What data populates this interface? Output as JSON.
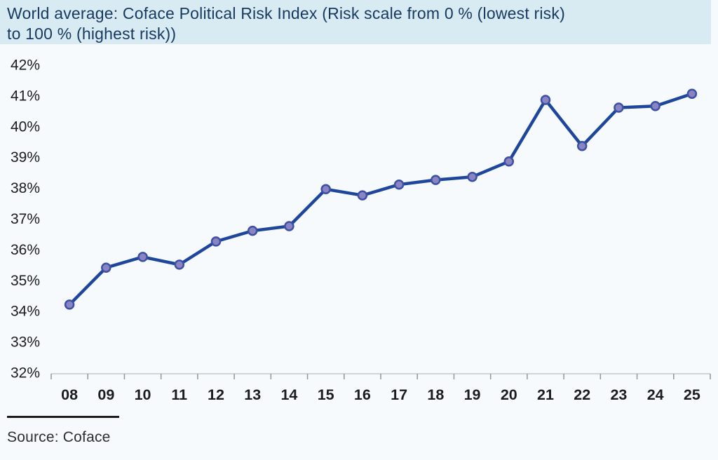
{
  "header": {
    "title": "World average: Coface Political Risk Index (Risk scale from 0 % (lowest risk)\nto 100 % (highest risk))"
  },
  "chart_data": {
    "type": "line",
    "title": "World average: Coface Political Risk Index (Risk scale from 0 % (lowest risk) to 100 % (highest risk))",
    "categories": [
      "08",
      "09",
      "10",
      "11",
      "12",
      "13",
      "14",
      "15",
      "16",
      "17",
      "18",
      "19",
      "20",
      "21",
      "22",
      "23",
      "24",
      "25"
    ],
    "series": [
      {
        "name": "World average Coface Political Risk Index",
        "values": [
          34.2,
          35.4,
          35.75,
          35.5,
          36.25,
          36.6,
          36.75,
          37.95,
          37.75,
          38.1,
          38.25,
          38.35,
          38.85,
          40.85,
          39.35,
          40.6,
          40.65,
          41.05
        ]
      }
    ],
    "xlabel": "",
    "ylabel": "",
    "ylim": [
      32,
      42
    ],
    "ytick_step": 1,
    "ytick_suffix": "%",
    "grid": false,
    "legend": "none",
    "line_color": "#1e479c",
    "marker_fill": "#8a84c3",
    "marker_stroke": "#3d51a4",
    "axis_line_color": "#c3c8cd",
    "tick_color": "#8f969c",
    "tick_label_color": "#1c1c1e"
  },
  "footer": {
    "source": "Source: Coface"
  },
  "colors": {
    "title_band_bg": "#d8ebf2",
    "title_text": "#17395f",
    "page_bg": "#f6fafd"
  }
}
